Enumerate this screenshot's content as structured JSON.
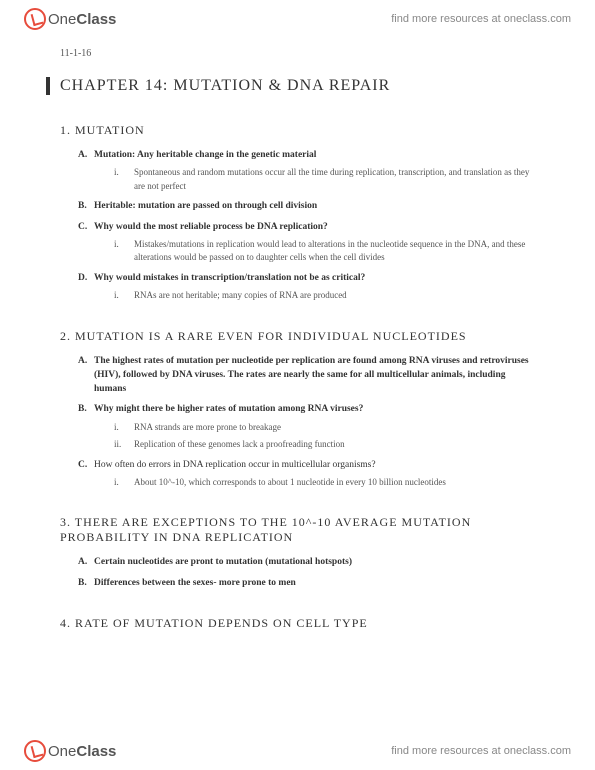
{
  "brand": {
    "part1": "One",
    "part2": "Class"
  },
  "header_link": "find more resources at oneclass.com",
  "footer_link": "find more resources at oneclass.com",
  "date": "11-1-16",
  "chapter_title": "CHAPTER 14: MUTATION & DNA REPAIR",
  "sections": [
    {
      "title": "MUTATION",
      "items": [
        {
          "bold": true,
          "text": "Mutation: Any heritable change in the genetic material",
          "sub": [
            "Spontaneous and random mutations occur all the time during replication, transcription, and translation as they are not perfect"
          ]
        },
        {
          "bold": true,
          "text": "Heritable: mutation are passed on through cell division"
        },
        {
          "bold": true,
          "text": "Why would the most reliable process be DNA replication?",
          "sub": [
            "Mistakes/mutations in replication would lead to alterations in the nucleotide sequence in the DNA, and these alterations would be passed on to daughter cells when the cell divides"
          ]
        },
        {
          "bold": true,
          "text": "Why would mistakes in transcription/translation not be as critical?",
          "sub": [
            "RNAs are not heritable; many copies of RNA are produced"
          ]
        }
      ]
    },
    {
      "title": "MUTATION IS A RARE EVEN FOR INDIVIDUAL NUCLEOTIDES",
      "items": [
        {
          "bold": true,
          "text": "The highest rates of mutation per nucleotide per replication are found among RNA viruses and retroviruses (HIV), followed by DNA viruses. The rates are nearly the same for all multicellular animals, including humans"
        },
        {
          "bold": true,
          "text": "Why might there be higher rates of mutation among RNA viruses?",
          "sub": [
            "RNA strands are more prone to breakage",
            "Replication of these genomes lack a proofreading function"
          ]
        },
        {
          "bold": false,
          "text": "How often do errors in DNA replication occur in multicellular organisms?",
          "sub": [
            "About 10^-10, which corresponds to about 1 nucleotide in every 10 billion nucleotides"
          ]
        }
      ]
    },
    {
      "title": "THERE ARE EXCEPTIONS TO THE 10^-10 AVERAGE MUTATION PROBABILITY IN DNA REPLICATION",
      "items": [
        {
          "bold": true,
          "text": "Certain nucleotides are pront to mutation (mutational hotspots)"
        },
        {
          "bold": true,
          "text": "Differences between the sexes- more prone to men"
        }
      ]
    },
    {
      "title": "RATE OF MUTATION DEPENDS ON CELL TYPE",
      "items": []
    }
  ]
}
